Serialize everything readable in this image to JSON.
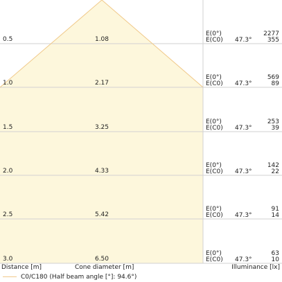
{
  "chart_data": {
    "type": "cone",
    "xlabel": "Distance [m]",
    "center_label": "Cone diameter [m]",
    "ylabel": "Illuminance [lx]",
    "legend": {
      "label": "C0/C180 (Half beam angle [°]: 94.6°)"
    },
    "fill_color": "#fdf7dc",
    "line_color": "#f0c98a",
    "grid_color": "#d2d2d2",
    "rows": [
      {
        "distance": "0.5",
        "diameter": "1.08",
        "e0_label": "E(0°)",
        "ec0_label": "E(C0)",
        "angle": "47.3°",
        "e0": "2277",
        "ec0": "355"
      },
      {
        "distance": "1.0",
        "diameter": "2.17",
        "e0_label": "E(0°)",
        "ec0_label": "E(C0)",
        "angle": "47.3°",
        "e0": "569",
        "ec0": "89"
      },
      {
        "distance": "1.5",
        "diameter": "3.25",
        "e0_label": "E(0°)",
        "ec0_label": "E(C0)",
        "angle": "47.3°",
        "e0": "253",
        "ec0": "39"
      },
      {
        "distance": "2.0",
        "diameter": "4.33",
        "e0_label": "E(0°)",
        "ec0_label": "E(C0)",
        "angle": "47.3°",
        "e0": "142",
        "ec0": "22"
      },
      {
        "distance": "2.5",
        "diameter": "5.42",
        "e0_label": "E(0°)",
        "ec0_label": "E(C0)",
        "angle": "47.3°",
        "e0": "91",
        "ec0": "14"
      },
      {
        "distance": "3.0",
        "diameter": "6.50",
        "e0_label": "E(0°)",
        "ec0_label": "E(C0)",
        "angle": "47.3°",
        "e0": "63",
        "ec0": "10"
      }
    ]
  }
}
